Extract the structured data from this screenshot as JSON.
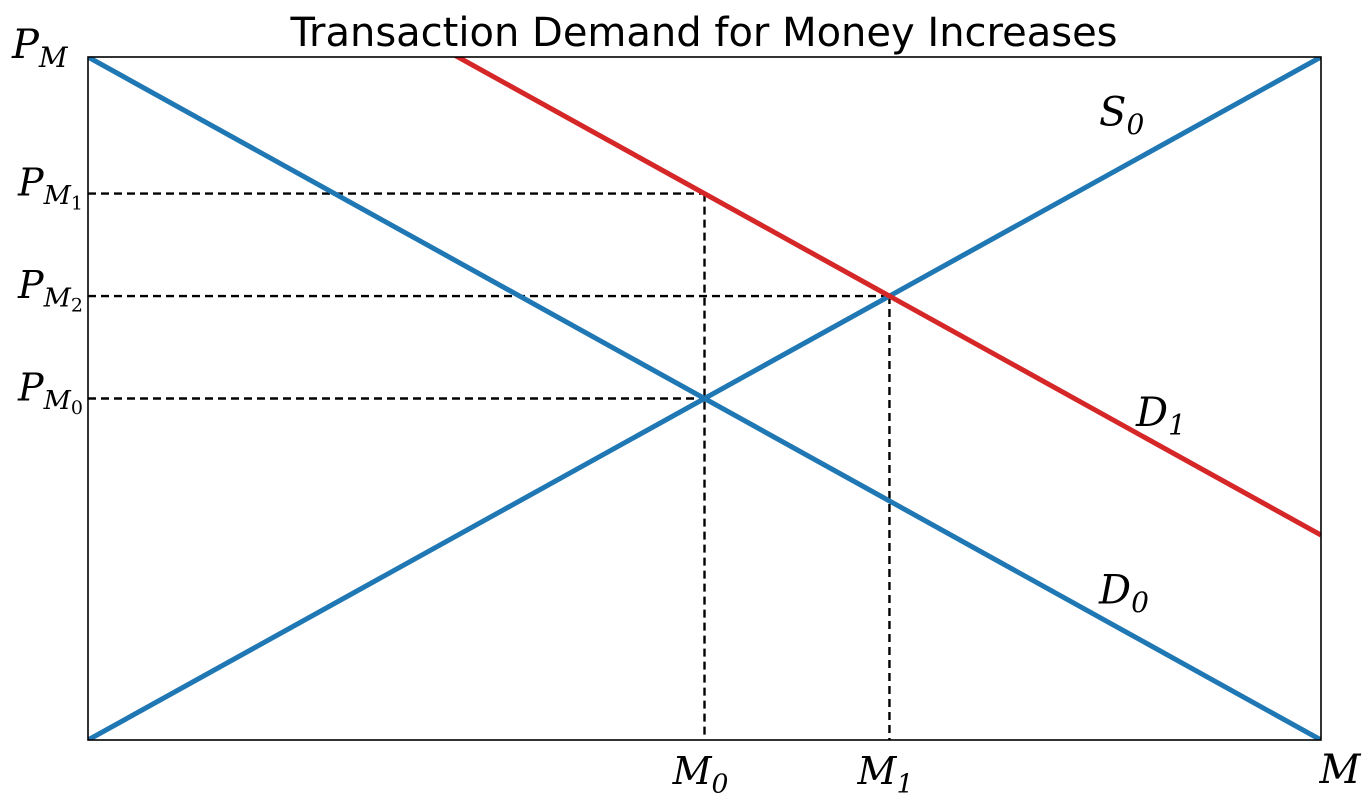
{
  "chart_data": {
    "type": "line",
    "title": "Transaction Demand for Money Increases",
    "xlabel": {
      "main": "M",
      "sub": ""
    },
    "ylabel": {
      "main": "P",
      "sub": "M"
    },
    "xlim": [
      0,
      10
    ],
    "ylim": [
      0,
      10
    ],
    "x_ticks": [
      {
        "main": "M",
        "sub": "0",
        "value": 5.0
      },
      {
        "main": "M",
        "sub": "1",
        "value": 6.5
      }
    ],
    "y_ticks": [
      {
        "main": "P",
        "sub": "M",
        "subsub": "1",
        "value": 8.0
      },
      {
        "main": "P",
        "sub": "M",
        "subsub": "2",
        "value": 6.5
      },
      {
        "main": "P",
        "sub": "M",
        "subsub": "0",
        "value": 5.0
      }
    ],
    "series": [
      {
        "name": "S",
        "sub": "0",
        "color": "#1f77b4",
        "x": [
          0,
          10
        ],
        "y": [
          0,
          10
        ],
        "label_at": [
          8.2,
          9.0
        ]
      },
      {
        "name": "D",
        "sub": "0",
        "color": "#1f77b4",
        "x": [
          0,
          10
        ],
        "y": [
          10,
          0
        ],
        "label_at": [
          8.2,
          2.0
        ]
      },
      {
        "name": "D",
        "sub": "1",
        "color": "#d62728",
        "x": [
          0,
          10
        ],
        "y": [
          13,
          3
        ],
        "label_at": [
          8.5,
          4.6
        ]
      }
    ],
    "guides": [
      {
        "from": [
          0,
          8.0
        ],
        "to": [
          5.0,
          8.0
        ]
      },
      {
        "from": [
          5.0,
          8.0
        ],
        "to": [
          5.0,
          0
        ]
      },
      {
        "from": [
          0,
          6.5
        ],
        "to": [
          6.5,
          6.5
        ]
      },
      {
        "from": [
          6.5,
          6.5
        ],
        "to": [
          6.5,
          0
        ]
      },
      {
        "from": [
          0,
          5.0
        ],
        "to": [
          5.0,
          5.0
        ]
      }
    ],
    "grid": false,
    "legend": "none"
  }
}
